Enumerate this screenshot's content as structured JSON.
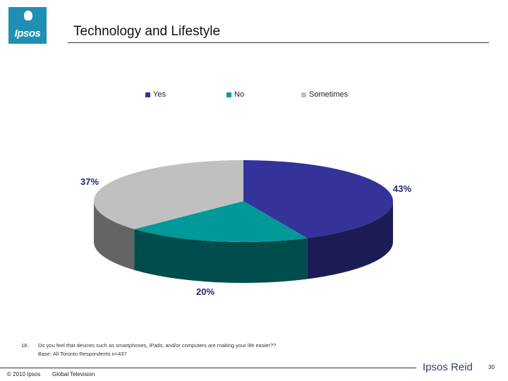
{
  "logo": {
    "text": "Ipsos"
  },
  "slide": {
    "title": "Technology and Lifestyle"
  },
  "chart_data": {
    "type": "pie",
    "categories": [
      "Yes",
      "No",
      "Sometimes"
    ],
    "values": [
      43,
      20,
      37
    ],
    "labels": [
      "43%",
      "20%",
      "37%"
    ],
    "colors": {
      "top": [
        "#33339a",
        "#009999",
        "#c0c0c0"
      ],
      "side": [
        "#1c1c55",
        "#004d4d",
        "#646464"
      ]
    },
    "legend_position": "top",
    "title": ""
  },
  "footnote": {
    "number": "18.",
    "question": "Do you feel that devices such as smartphones, iPads, and/or computers are making your life easier??",
    "base": "Base:  All Toronto Respondents n=437"
  },
  "footer": {
    "copyright": "© 2010 Ipsos",
    "client": "Global Television",
    "brand": "Ipsos Reid",
    "page": "30"
  }
}
